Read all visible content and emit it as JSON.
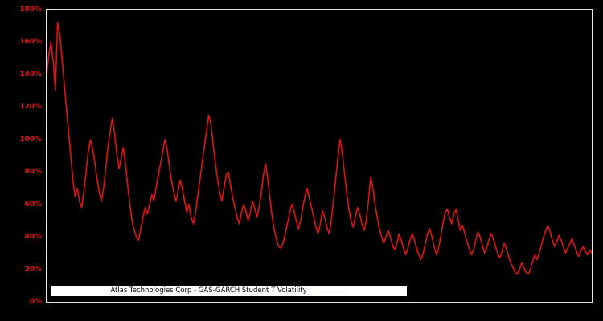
{
  "figure": {
    "background_color": "#000000",
    "axis_border_color": "#e6e6e6",
    "accent_color": "#e31414"
  },
  "legend": {
    "label": "Atlas Technologies Corp - GAS-GARCH Student T Volatility",
    "background_color": "#ffffff",
    "text_color": "#000000"
  },
  "chart_data": {
    "type": "line",
    "title": "",
    "xlabel": "",
    "ylabel": "",
    "ylim": [
      0,
      180
    ],
    "ytick_values": [
      0,
      20,
      40,
      60,
      80,
      100,
      120,
      140,
      160,
      180
    ],
    "ytick_labels": [
      "0%",
      "20%",
      "40%",
      "60%",
      "80%",
      "100%",
      "120%",
      "140%",
      "160%",
      "180%"
    ],
    "grid": false,
    "legend_position": "bottom-left",
    "line_color": "#e31414",
    "tick_label_color": "#e31414",
    "series": [
      {
        "name": "Atlas Technologies Corp - GAS-GARCH Student T Volatility",
        "unit": "%",
        "values": [
          140,
          152,
          160,
          148,
          130,
          172,
          165,
          150,
          135,
          120,
          105,
          90,
          75,
          65,
          70,
          62,
          58,
          68,
          80,
          92,
          100,
          94,
          86,
          76,
          68,
          62,
          70,
          82,
          95,
          105,
          113,
          104,
          92,
          82,
          88,
          95,
          85,
          72,
          60,
          50,
          44,
          40,
          38,
          45,
          52,
          58,
          54,
          60,
          66,
          62,
          70,
          78,
          85,
          92,
          100,
          94,
          84,
          75,
          68,
          62,
          68,
          75,
          70,
          62,
          55,
          60,
          52,
          48,
          55,
          65,
          75,
          85,
          95,
          105,
          115,
          110,
          98,
          86,
          76,
          68,
          62,
          70,
          78,
          80,
          72,
          64,
          58,
          52,
          48,
          55,
          60,
          56,
          50,
          55,
          62,
          58,
          52,
          58,
          66,
          78,
          85,
          76,
          64,
          52,
          44,
          38,
          34,
          33,
          36,
          42,
          48,
          55,
          60,
          56,
          50,
          45,
          50,
          58,
          65,
          70,
          64,
          58,
          52,
          46,
          42,
          48,
          56,
          52,
          46,
          42,
          50,
          62,
          75,
          88,
          100,
          92,
          80,
          68,
          58,
          50,
          46,
          52,
          58,
          54,
          48,
          44,
          50,
          62,
          77,
          70,
          60,
          52,
          45,
          40,
          36,
          40,
          44,
          40,
          35,
          32,
          36,
          42,
          38,
          33,
          29,
          33,
          38,
          42,
          38,
          33,
          29,
          26,
          30,
          36,
          42,
          45,
          40,
          34,
          29,
          33,
          40,
          48,
          55,
          57,
          52,
          48,
          54,
          57,
          50,
          44,
          47,
          42,
          37,
          33,
          29,
          32,
          38,
          43,
          40,
          35,
          30,
          33,
          38,
          42,
          39,
          34,
          30,
          27,
          31,
          36,
          33,
          28,
          24,
          21,
          18,
          17,
          20,
          24,
          21,
          18,
          17,
          20,
          25,
          29,
          26,
          30,
          35,
          40,
          44,
          47,
          43,
          38,
          34,
          37,
          41,
          38,
          34,
          30,
          33,
          36,
          39,
          35,
          31,
          28,
          31,
          34,
          31,
          29,
          32,
          30
        ]
      }
    ]
  }
}
